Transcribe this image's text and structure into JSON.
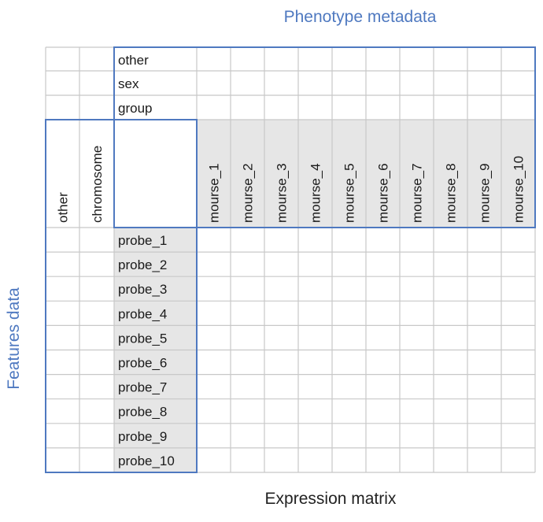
{
  "titles": {
    "phenotype": "Phenotype metadata",
    "features": "Features data",
    "expression": "Expression matrix"
  },
  "phenotype_rows": [
    "other",
    "sex",
    "group"
  ],
  "feature_columns": [
    "other",
    "chromosome"
  ],
  "samples": [
    "mourse_1",
    "mourse_2",
    "mourse_3",
    "mourse_4",
    "mourse_5",
    "mourse_6",
    "mourse_7",
    "mourse_8",
    "mourse_9",
    "mourse_10"
  ],
  "probes": [
    "probe_1",
    "probe_2",
    "probe_3",
    "probe_4",
    "probe_5",
    "probe_6",
    "probe_7",
    "probe_8",
    "probe_9",
    "probe_10"
  ],
  "colors": {
    "accent_blue": "#4f79c0",
    "header_fill": "#e6e6e6",
    "grid_line": "#c8c8c8"
  }
}
